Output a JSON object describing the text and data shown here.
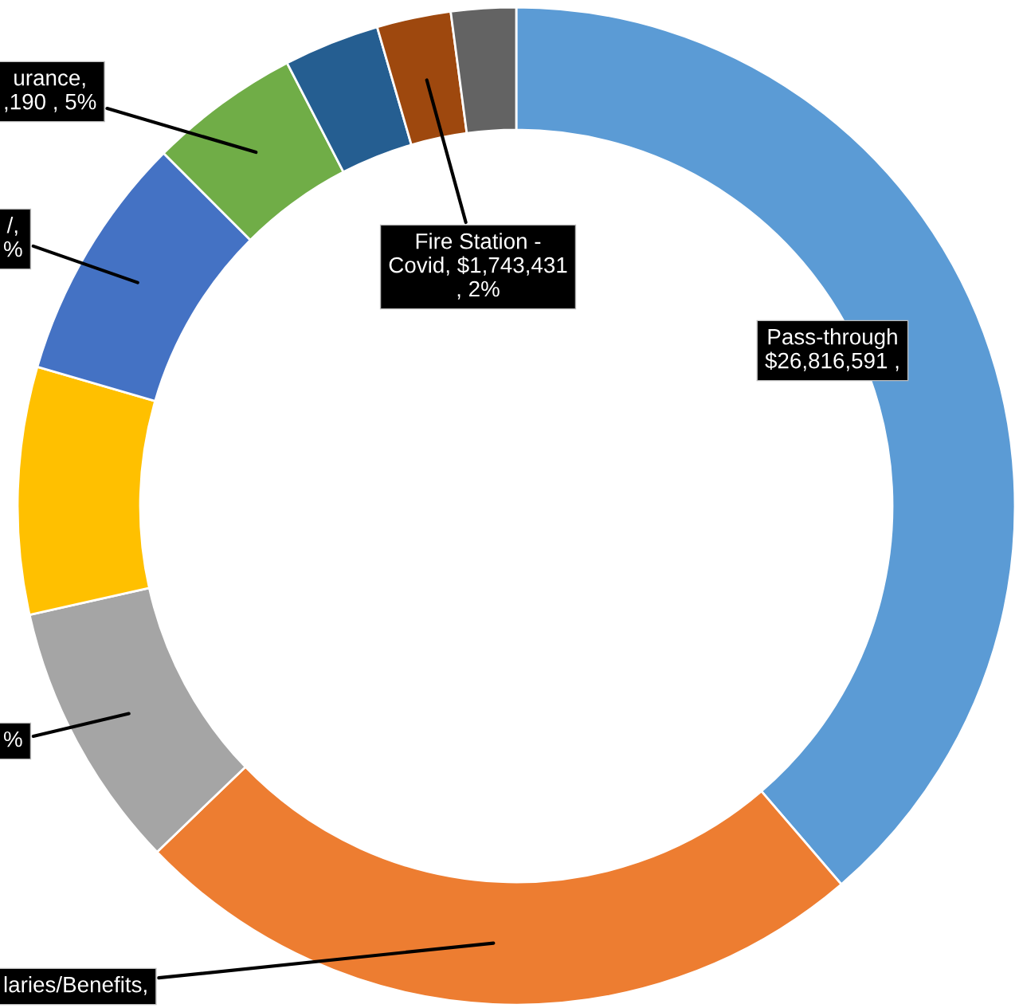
{
  "chart_data": {
    "type": "donut",
    "categories": [
      null,
      null,
      null,
      null,
      null,
      null,
      null,
      null,
      null
    ],
    "values": [
      38.7,
      24.1,
      8.7,
      8.0,
      8.0,
      4.9,
      3.1,
      2.4,
      2.1
    ],
    "colors": [
      "#5b9bd5",
      "#ed7d31",
      "#a5a5a5",
      "#ffc000",
      "#4472c4",
      "#70ad47",
      "#255e91",
      "#9e480e",
      "#636363"
    ],
    "value_labels": [
      "Pass-through\n$26,816,591 ,",
      "laries/Benefits,",
      "%",
      null,
      "/,\n%",
      "urance,\n,190 , 5%",
      null,
      "Fire Station -\nCovid, $1,743,431\n, 2%",
      null
    ],
    "legend": false
  }
}
